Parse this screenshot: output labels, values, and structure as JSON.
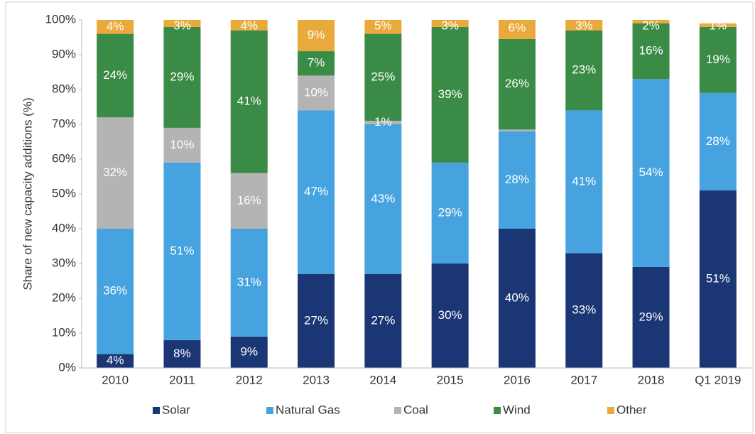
{
  "chart_data": {
    "type": "stacked_bar",
    "y_label": "Share of new capacity additions (%)",
    "categories": [
      "2010",
      "2011",
      "2012",
      "2013",
      "2014",
      "2015",
      "2016",
      "2017",
      "2018",
      "Q1 2019"
    ],
    "series": [
      {
        "name": "Solar",
        "color": "#1b3675",
        "values": [
          4,
          8,
          9,
          27,
          27,
          30,
          40,
          33,
          29,
          51
        ],
        "value_labels": [
          "4%",
          "8%",
          "9%",
          "27%",
          "27%",
          "30%",
          "40%",
          "33%",
          "29%",
          "51%"
        ]
      },
      {
        "name": "Natural Gas",
        "color": "#46a3df",
        "values": [
          36,
          51,
          31,
          47,
          43,
          29,
          28,
          41,
          54,
          28
        ],
        "value_labels": [
          "36%",
          "51%",
          "31%",
          "47%",
          "43%",
          "29%",
          "28%",
          "41%",
          "54%",
          "28%"
        ]
      },
      {
        "name": "Coal",
        "color": "#b4b4b4",
        "values": [
          32,
          10,
          16,
          10,
          1,
          0,
          0.5,
          0,
          0,
          0
        ],
        "value_labels": [
          "32%",
          "10%",
          "16%",
          "10%",
          "1%",
          null,
          null,
          null,
          null,
          null
        ]
      },
      {
        "name": "Wind",
        "color": "#3a8b45",
        "values": [
          24,
          29,
          41,
          7,
          25,
          39,
          26,
          23,
          16,
          19
        ],
        "value_labels": [
          "24%",
          "29%",
          "41%",
          "7%",
          "25%",
          "39%",
          "26%",
          "23%",
          "16%",
          "19%"
        ]
      },
      {
        "name": "Other",
        "color": "#e9aa3b",
        "values": [
          4,
          3,
          4,
          9,
          5,
          3,
          6,
          3,
          2,
          1
        ],
        "value_labels": [
          "4%",
          "3%",
          "4%",
          "9%",
          "5%",
          "3%",
          "6%",
          "3%",
          "2%",
          "1%"
        ]
      }
    ],
    "ylim": [
      0,
      100
    ],
    "yticks": [
      {
        "value": 0,
        "label": "0%"
      },
      {
        "value": 10,
        "label": "10%"
      },
      {
        "value": 20,
        "label": "20%"
      },
      {
        "value": 30,
        "label": "30%"
      },
      {
        "value": 40,
        "label": "40%"
      },
      {
        "value": 50,
        "label": "50%"
      },
      {
        "value": 60,
        "label": "60%"
      },
      {
        "value": 70,
        "label": "70%"
      },
      {
        "value": 80,
        "label": "80%"
      },
      {
        "value": 90,
        "label": "90%"
      },
      {
        "value": 100,
        "label": "100%"
      }
    ],
    "legend": "bottom"
  }
}
